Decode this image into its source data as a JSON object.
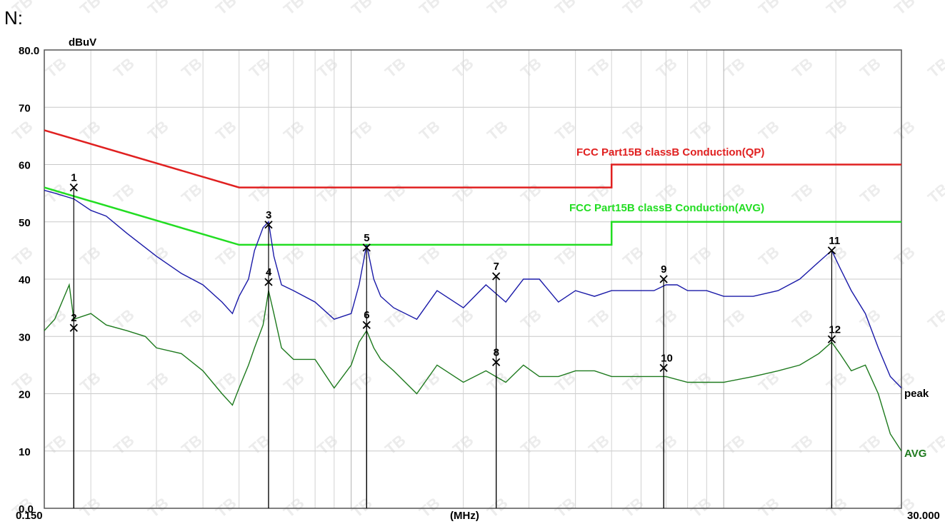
{
  "page_label": "N:",
  "watermark_text": "TB",
  "chart_data": {
    "type": "line",
    "title": "",
    "y_unit": "dBuV",
    "x_unit": "(MHz)",
    "x_scale": "log",
    "xlim": [
      0.15,
      30.0
    ],
    "ylim": [
      0.0,
      80.0
    ],
    "y_ticks": [
      "80.0",
      "70",
      "60",
      "50",
      "40",
      "30",
      "20",
      "10",
      "0.0"
    ],
    "x_tick_labels": [
      "0.150",
      "30.000"
    ],
    "grid": true,
    "colors": {
      "qp_limit": "#e02020",
      "avg_limit": "#22dd22",
      "peak": "#1a1aa8",
      "avg": "#1e7a1e",
      "marker": "#000000"
    },
    "limit_lines": [
      {
        "name": "FCC  Part15B  classB  Conduction(QP)",
        "points": [
          [
            0.15,
            66
          ],
          [
            0.5,
            56
          ],
          [
            5.0,
            56
          ],
          [
            5.0,
            60
          ],
          [
            30.0,
            60
          ]
        ]
      },
      {
        "name": "FCC  Part15B  classB  Conduction(AVG)",
        "points": [
          [
            0.15,
            56
          ],
          [
            0.5,
            46
          ],
          [
            5.0,
            46
          ],
          [
            5.0,
            50
          ],
          [
            30.0,
            50
          ]
        ]
      }
    ],
    "series": [
      {
        "name": "peak",
        "x": [
          0.15,
          0.16,
          0.18,
          0.2,
          0.22,
          0.25,
          0.3,
          0.35,
          0.4,
          0.45,
          0.48,
          0.5,
          0.53,
          0.55,
          0.58,
          0.6,
          0.62,
          0.65,
          0.7,
          0.8,
          0.9,
          1.0,
          1.05,
          1.1,
          1.15,
          1.2,
          1.3,
          1.5,
          1.7,
          2.0,
          2.3,
          2.6,
          2.9,
          3.2,
          3.6,
          4.0,
          4.5,
          5.0,
          5.5,
          6.0,
          6.5,
          7.0,
          7.5,
          8.0,
          9.0,
          10.0,
          12.0,
          14.0,
          16.0,
          18.0,
          19.5,
          20.5,
          22.0,
          24.0,
          26.0,
          28.0,
          30.0
        ],
        "y": [
          55.5,
          55,
          54,
          52,
          51,
          48,
          44,
          41,
          39,
          36,
          34,
          37,
          40,
          45,
          49,
          50,
          44,
          39,
          38,
          36,
          33,
          34,
          39,
          46,
          40,
          37,
          35,
          33,
          38,
          35,
          39,
          36,
          40,
          40,
          36,
          38,
          37,
          38,
          38,
          38,
          38,
          39,
          39,
          38,
          38,
          37,
          37,
          38,
          40,
          43,
          45,
          42,
          38,
          34,
          28,
          23,
          21
        ]
      },
      {
        "name": "AVG",
        "x": [
          0.15,
          0.16,
          0.175,
          0.18,
          0.2,
          0.22,
          0.25,
          0.28,
          0.3,
          0.35,
          0.4,
          0.45,
          0.48,
          0.5,
          0.53,
          0.55,
          0.58,
          0.6,
          0.62,
          0.65,
          0.7,
          0.8,
          0.9,
          1.0,
          1.05,
          1.1,
          1.15,
          1.2,
          1.3,
          1.5,
          1.7,
          2.0,
          2.3,
          2.6,
          2.9,
          3.2,
          3.6,
          4.0,
          4.5,
          5.0,
          6.0,
          7.0,
          8.0,
          10.0,
          12.0,
          14.0,
          16.0,
          18.0,
          19.5,
          20.5,
          22.0,
          24.0,
          26.0,
          28.0,
          30.0
        ],
        "y": [
          31,
          33,
          39,
          33,
          34,
          32,
          31,
          30,
          28,
          27,
          24,
          20,
          18,
          21,
          25,
          28,
          32,
          38,
          34,
          28,
          26,
          26,
          21,
          25,
          29,
          31,
          28,
          26,
          24,
          20,
          25,
          22,
          24,
          22,
          25,
          23,
          23,
          24,
          24,
          23,
          23,
          23,
          22,
          22,
          23,
          24,
          25,
          27,
          29,
          27,
          24,
          25,
          20,
          13,
          10
        ]
      }
    ],
    "markers": [
      {
        "id": "1",
        "x": 0.18,
        "y": 56.0
      },
      {
        "id": "2",
        "x": 0.18,
        "y": 31.5
      },
      {
        "id": "3",
        "x": 0.6,
        "y": 49.5
      },
      {
        "id": "4",
        "x": 0.6,
        "y": 39.5
      },
      {
        "id": "5",
        "x": 1.1,
        "y": 45.5
      },
      {
        "id": "6",
        "x": 1.1,
        "y": 32.0
      },
      {
        "id": "7",
        "x": 2.45,
        "y": 40.5
      },
      {
        "id": "8",
        "x": 2.45,
        "y": 25.5
      },
      {
        "id": "9",
        "x": 6.9,
        "y": 40.0
      },
      {
        "id": "10",
        "x": 6.9,
        "y": 24.5
      },
      {
        "id": "11",
        "x": 19.5,
        "y": 45.0
      },
      {
        "id": "12",
        "x": 19.5,
        "y": 29.5
      }
    ]
  }
}
